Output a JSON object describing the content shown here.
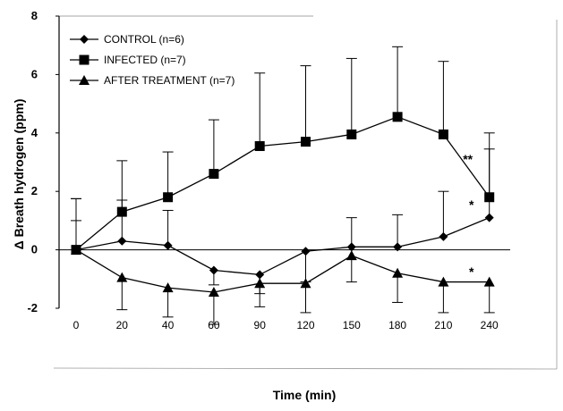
{
  "chart_data": {
    "type": "line",
    "xlabel": "Time (min)",
    "ylabel": "Δ Breath hydrogen (ppm)",
    "categories": [
      "0",
      "20",
      "40",
      "60",
      "90",
      "120",
      "150",
      "180",
      "210",
      "240"
    ],
    "ylim": [
      -2,
      8
    ],
    "yticks": [
      -2,
      0,
      2,
      4,
      6,
      8
    ],
    "legend_position": "top-left",
    "grid": false,
    "series": [
      {
        "name": "CONTROL (n=6)",
        "marker": "diamond",
        "values": [
          0,
          0.3,
          0.15,
          -0.7,
          -0.85,
          -0.05,
          0.1,
          0.1,
          0.45,
          1.1
        ],
        "errors": [
          1.0,
          1.4,
          1.2,
          0.5,
          0.65,
          1.05,
          1.0,
          1.1,
          1.55,
          2.35
        ]
      },
      {
        "name": "INFECTED (n=7)",
        "marker": "square",
        "values": [
          0,
          1.3,
          1.8,
          2.6,
          3.55,
          3.7,
          3.95,
          4.55,
          3.95,
          1.8
        ],
        "errors": [
          1.75,
          1.75,
          1.55,
          1.85,
          2.5,
          2.6,
          2.6,
          2.4,
          2.5,
          2.2
        ]
      },
      {
        "name": "AFTER TREATMENT (n=7)",
        "marker": "triangle",
        "values": [
          0,
          -0.95,
          -1.3,
          -1.45,
          -1.15,
          -1.15,
          -0.2,
          -0.8,
          -1.1,
          -1.1
        ],
        "errors": [
          1.75,
          1.1,
          1.0,
          1.1,
          0.8,
          1.0,
          0.9,
          1.0,
          1.05,
          1.05
        ]
      }
    ],
    "annotations": [
      {
        "text": "**",
        "x": "240",
        "series": "INFECTED (n=7)"
      },
      {
        "text": "*",
        "x": "240",
        "series": "CONTROL (n=6)"
      },
      {
        "text": "*",
        "x": "240",
        "series": "AFTER TREATMENT (n=7)"
      }
    ]
  }
}
